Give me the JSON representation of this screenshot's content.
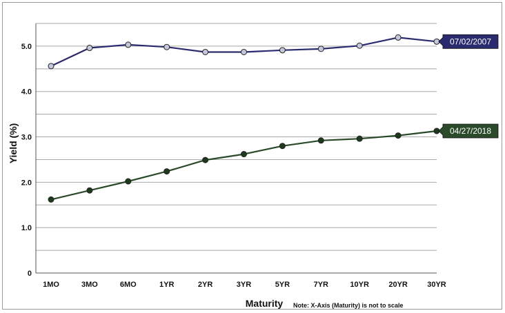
{
  "chart_data": {
    "type": "line",
    "xlabel": "Maturity",
    "ylabel": "Yield (%)",
    "note": "Note: X-Axis (Maturity) is not to scale",
    "categories": [
      "1MO",
      "3MO",
      "6MO",
      "1YR",
      "2YR",
      "3YR",
      "5YR",
      "7YR",
      "10YR",
      "20YR",
      "30YR"
    ],
    "ylim": [
      0,
      5.5
    ],
    "yticks": [
      0,
      1.0,
      2.0,
      3.0,
      4.0,
      5.0
    ],
    "ytick_labels": [
      "0",
      "1.0",
      "2.0",
      "3.0",
      "4.0",
      "5.0"
    ],
    "grid": true,
    "series": [
      {
        "name": "07/02/2007",
        "color": "#2a2a6e",
        "marker_color": "#c4c8dc",
        "values": [
          4.56,
          4.96,
          5.03,
          4.98,
          4.87,
          4.87,
          4.91,
          4.94,
          5.01,
          5.19,
          5.1
        ]
      },
      {
        "name": "04/27/2018",
        "color": "#2a4a2a",
        "marker_color": "#1d3a1d",
        "values": [
          1.62,
          1.82,
          2.02,
          2.24,
          2.49,
          2.62,
          2.8,
          2.92,
          2.96,
          3.03,
          3.13
        ]
      }
    ]
  }
}
